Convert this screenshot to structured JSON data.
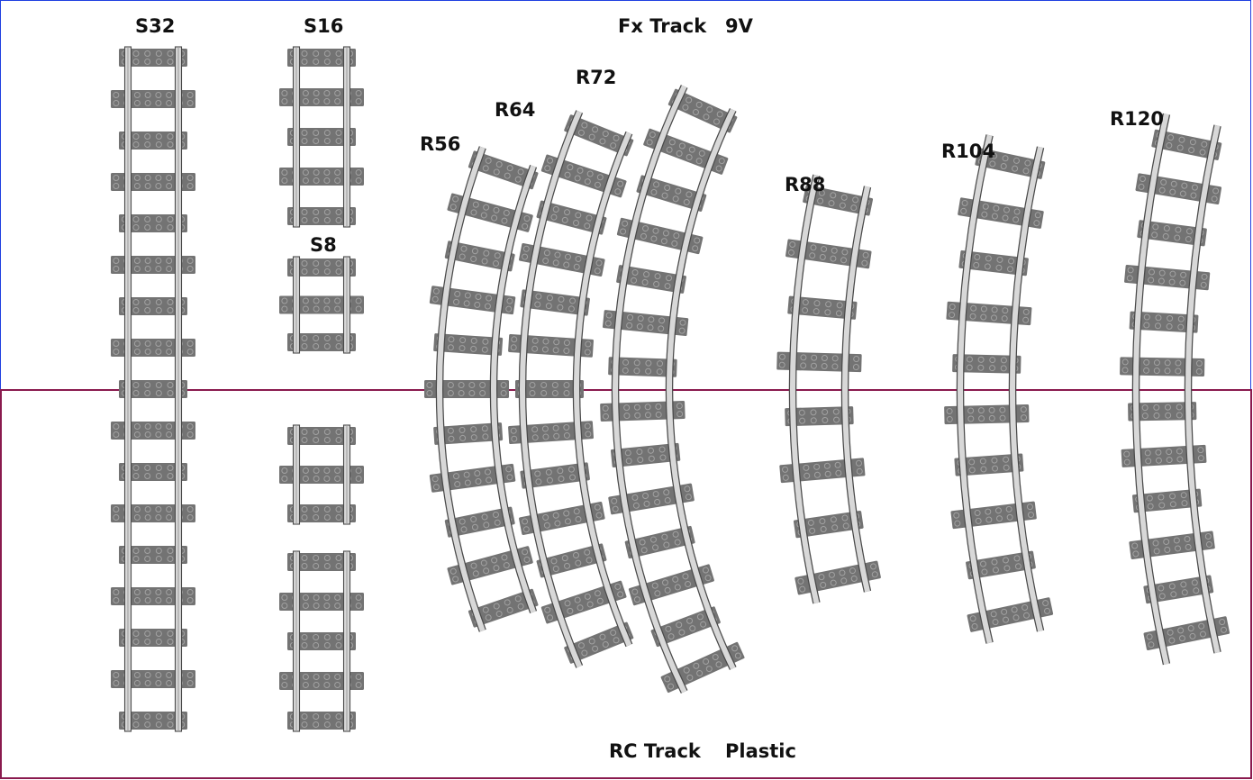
{
  "top_panel": {
    "name": "Fx Track",
    "type": "9V",
    "border_color": "#1f3fe0"
  },
  "bottom_panel": {
    "name": "RC Track",
    "type": "Plastic",
    "border_color": "#8a1a4e"
  },
  "colors": {
    "tie": "#737373",
    "stud": "#a2a2a2",
    "rail_fill": "#d8d8d8",
    "rail_edge": "#4a4a4a"
  },
  "pieces": {
    "S32": "S32",
    "S16": "S16",
    "S8": "S8",
    "R56": "R56",
    "R64": "R64",
    "R72": "R72",
    "R88": "R88",
    "R104": "R104",
    "R120": "R120"
  }
}
